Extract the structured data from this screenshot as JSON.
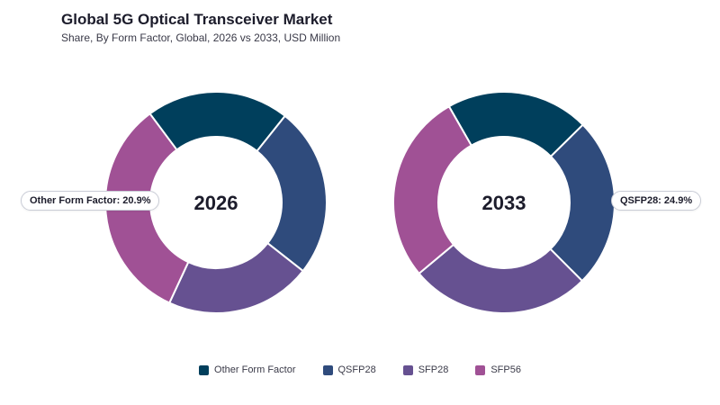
{
  "header": {
    "title": "Global 5G Optical Transceiver Market",
    "subtitle": "Share, By Form Factor, Global, 2026 vs 2033, USD Million"
  },
  "colors": {
    "Other Form Factor": "#003f5c",
    "QSFP28": "#2f4b7c",
    "SFP28": "#665191",
    "SFP56": "#a05195"
  },
  "chart_data": [
    {
      "type": "pie",
      "variant": "donut",
      "center_label": "2026",
      "categories": [
        "Other Form Factor",
        "QSFP28",
        "SFP28",
        "SFP56"
      ],
      "values": [
        20.9,
        24.9,
        21.3,
        32.9
      ],
      "unit": "%",
      "callout": {
        "label": "Other Form Factor: 20.9%"
      }
    },
    {
      "type": "pie",
      "variant": "donut",
      "center_label": "2033",
      "categories": [
        "Other Form Factor",
        "QSFP28",
        "SFP28",
        "SFP56"
      ],
      "values": [
        20.9,
        24.9,
        26.4,
        27.8
      ],
      "unit": "%",
      "callout": {
        "label": "QSFP28: 24.9%"
      }
    }
  ],
  "legend": {
    "items": [
      "Other Form Factor",
      "QSFP28",
      "SFP28",
      "SFP56"
    ],
    "placement": "bottom-center"
  }
}
